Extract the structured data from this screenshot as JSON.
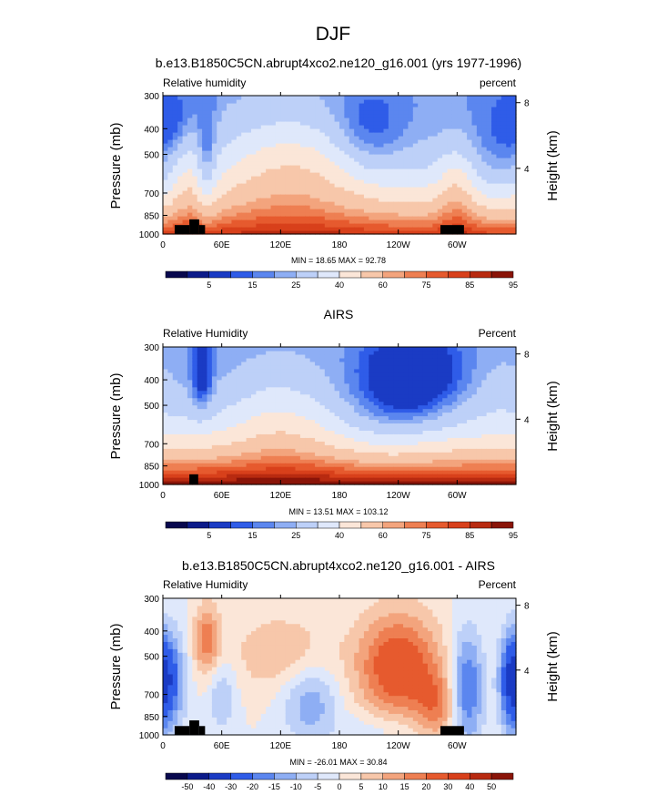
{
  "page_title": "DJF",
  "colors": {
    "fill_levels_abs": [
      "#08084e",
      "#0c1b8a",
      "#1a3bc4",
      "#2f5ce8",
      "#5b86ef",
      "#8eaef4",
      "#bdd0f8",
      "#dfe8fb",
      "#fbe6d8",
      "#f7c7aa",
      "#f3a47d",
      "#ee7f52",
      "#e65a2e",
      "#d8401b",
      "#b82a10",
      "#8a1408"
    ],
    "fill_levels_diff": [
      "#08084e",
      "#0c1b8a",
      "#1a3bc4",
      "#2f5ce8",
      "#5b86ef",
      "#8eaef4",
      "#bdd0f8",
      "#dfe8fb",
      "#fbe6d8",
      "#f7c7aa",
      "#f3a47d",
      "#ee7f52",
      "#e65a2e",
      "#d8401b",
      "#b82a10",
      "#8a1408"
    ],
    "terrain": "#000000"
  },
  "chart_data": [
    {
      "type": "heatmap",
      "title": "b.e13.B1850C5CN.abrupt4xco2.ne120_g16.001 (yrs 1977-1996)",
      "variable_label": "Relative humidity",
      "units_label": "percent",
      "ylabel": "Pressure (mb)",
      "right_ylabel": "Height (km)",
      "ylim": [
        1000,
        300
      ],
      "xlim": [
        0,
        360
      ],
      "y_ticks": [
        "300",
        "400",
        "500",
        "700",
        "850",
        "1000"
      ],
      "y_tick_values": [
        300,
        400,
        500,
        700,
        850,
        1000
      ],
      "right_ticks": [
        "8",
        "4"
      ],
      "right_tick_values": [
        8,
        4
      ],
      "x_ticks": [
        "0",
        "60E",
        "120E",
        "180",
        "120W",
        "60W"
      ],
      "x_tick_values": [
        0,
        60,
        120,
        180,
        240,
        300
      ],
      "min_max_text": "MIN = 18.65   MAX = 92.78",
      "min": 18.65,
      "max": 92.78,
      "colorbar_labels": [
        "5",
        "15",
        "25",
        "40",
        "60",
        "75",
        "85",
        "95"
      ],
      "colorbar_label_boundaries": [
        2,
        4,
        6,
        8,
        10,
        12,
        14,
        16
      ],
      "levels": [
        5,
        10,
        15,
        20,
        25,
        30,
        40,
        50,
        60,
        70,
        75,
        80,
        85,
        90,
        95
      ],
      "terrain": [
        {
          "lon_start": 12,
          "lon_end": 27,
          "p_top": 925
        },
        {
          "lon_start": 27,
          "lon_end": 37,
          "p_top": 880
        },
        {
          "lon_start": 37,
          "lon_end": 43,
          "p_top": 925
        },
        {
          "lon_start": 283,
          "lon_end": 307,
          "p_top": 925
        }
      ]
    },
    {
      "type": "heatmap",
      "title": "AIRS",
      "variable_label": "Relative Humidity",
      "units_label": "Percent",
      "ylabel": "Pressure (mb)",
      "right_ylabel": "Height (km)",
      "ylim": [
        1000,
        300
      ],
      "xlim": [
        0,
        360
      ],
      "y_ticks": [
        "300",
        "400",
        "500",
        "700",
        "850",
        "1000"
      ],
      "y_tick_values": [
        300,
        400,
        500,
        700,
        850,
        1000
      ],
      "right_ticks": [
        "8",
        "4"
      ],
      "right_tick_values": [
        8,
        4
      ],
      "x_ticks": [
        "0",
        "60E",
        "120E",
        "180",
        "120W",
        "60W"
      ],
      "x_tick_values": [
        0,
        60,
        120,
        180,
        240,
        300
      ],
      "min_max_text": "MIN = 13.51   MAX = 103.12",
      "min": 13.51,
      "max": 103.12,
      "colorbar_labels": [
        "5",
        "15",
        "25",
        "40",
        "60",
        "75",
        "85",
        "95"
      ],
      "colorbar_label_boundaries": [
        2,
        4,
        6,
        8,
        10,
        12,
        14,
        16
      ],
      "levels": [
        5,
        10,
        15,
        20,
        25,
        30,
        40,
        50,
        60,
        70,
        75,
        80,
        85,
        90,
        95
      ],
      "terrain": [
        {
          "lon_start": 27,
          "lon_end": 36,
          "p_top": 915
        }
      ]
    },
    {
      "type": "heatmap",
      "title": "b.e13.B1850C5CN.abrupt4xco2.ne120_g16.001 - AIRS",
      "variable_label": "Relative Humidity",
      "units_label": "Percent",
      "ylabel": "Pressure (mb)",
      "right_ylabel": "Height (km)",
      "ylim": [
        1000,
        300
      ],
      "xlim": [
        0,
        360
      ],
      "y_ticks": [
        "300",
        "400",
        "500",
        "700",
        "850",
        "1000"
      ],
      "y_tick_values": [
        300,
        400,
        500,
        700,
        850,
        1000
      ],
      "right_ticks": [
        "8",
        "4"
      ],
      "right_tick_values": [
        8,
        4
      ],
      "x_ticks": [
        "0",
        "60E",
        "120E",
        "180",
        "120W",
        "60W"
      ],
      "x_tick_values": [
        0,
        60,
        120,
        180,
        240,
        300
      ],
      "min_max_text": "MIN = -26.01   MAX = 30.84",
      "min": -26.01,
      "max": 30.84,
      "colorbar_labels": [
        "-50",
        "-40",
        "-30",
        "-20",
        "-15",
        "-10",
        "-5",
        "0",
        "5",
        "10",
        "15",
        "20",
        "30",
        "40",
        "50"
      ],
      "colorbar_label_boundaries": [
        1,
        2,
        3,
        4,
        5,
        6,
        7,
        8,
        9,
        10,
        11,
        12,
        13,
        14,
        15
      ],
      "levels": [
        -50,
        -40,
        -30,
        -20,
        -15,
        -10,
        -5,
        0,
        5,
        10,
        15,
        20,
        30,
        40,
        50
      ],
      "terrain": [
        {
          "lon_start": 12,
          "lon_end": 27,
          "p_top": 925
        },
        {
          "lon_start": 27,
          "lon_end": 37,
          "p_top": 880
        },
        {
          "lon_start": 37,
          "lon_end": 43,
          "p_top": 925
        },
        {
          "lon_start": 283,
          "lon_end": 307,
          "p_top": 925
        }
      ]
    }
  ]
}
